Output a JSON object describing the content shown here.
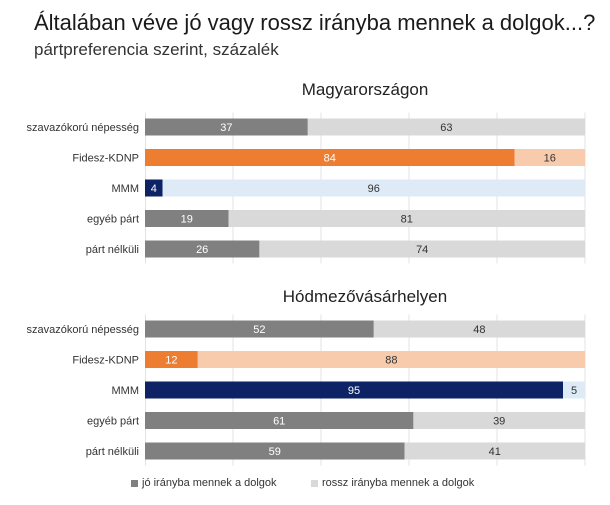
{
  "title": "Általában véve jó vagy rossz irányba mennek a dolgok...?",
  "subtitle": "pártpreferencia szerint, százalék",
  "legend": {
    "good": "jó irányba mennek a dolgok",
    "bad": "rossz irányba mennek a dolgok"
  },
  "colors": {
    "gray_good": "#808080",
    "gray_bad": "#d9d9d9",
    "orange_good": "#ed7d31",
    "orange_bad": "#f8cbad",
    "navy_good": "#0d2366",
    "navy_bad": "#deebf7"
  },
  "chart_data": [
    {
      "type": "bar",
      "stacked": true,
      "orientation": "horizontal",
      "title": "Magyarországon",
      "categories": [
        "szavazókorú népesség",
        "Fidesz-KDNP",
        "MMM",
        "egyéb párt",
        "párt nélküli"
      ],
      "series": [
        {
          "name": "jó irányba mennek a dolgok",
          "values": [
            37,
            84,
            4,
            19,
            26
          ]
        },
        {
          "name": "rossz irányba mennek a dolgok",
          "values": [
            63,
            16,
            96,
            81,
            74
          ]
        }
      ],
      "xlim": [
        0,
        100
      ],
      "bar_colors": [
        "gray",
        "orange",
        "navy",
        "gray",
        "gray"
      ]
    },
    {
      "type": "bar",
      "stacked": true,
      "orientation": "horizontal",
      "title": "Hódmezővásárhelyen",
      "categories": [
        "szavazókorú népesség",
        "Fidesz-KDNP",
        "MMM",
        "egyéb párt",
        "párt nélküli"
      ],
      "series": [
        {
          "name": "jó irányba mennek a dolgok",
          "values": [
            52,
            12,
            95,
            61,
            59
          ]
        },
        {
          "name": "rossz irányba mennek a dolgok",
          "values": [
            48,
            88,
            5,
            39,
            41
          ]
        }
      ],
      "xlim": [
        0,
        100
      ],
      "bar_colors": [
        "gray",
        "orange",
        "navy",
        "gray",
        "gray"
      ]
    }
  ]
}
